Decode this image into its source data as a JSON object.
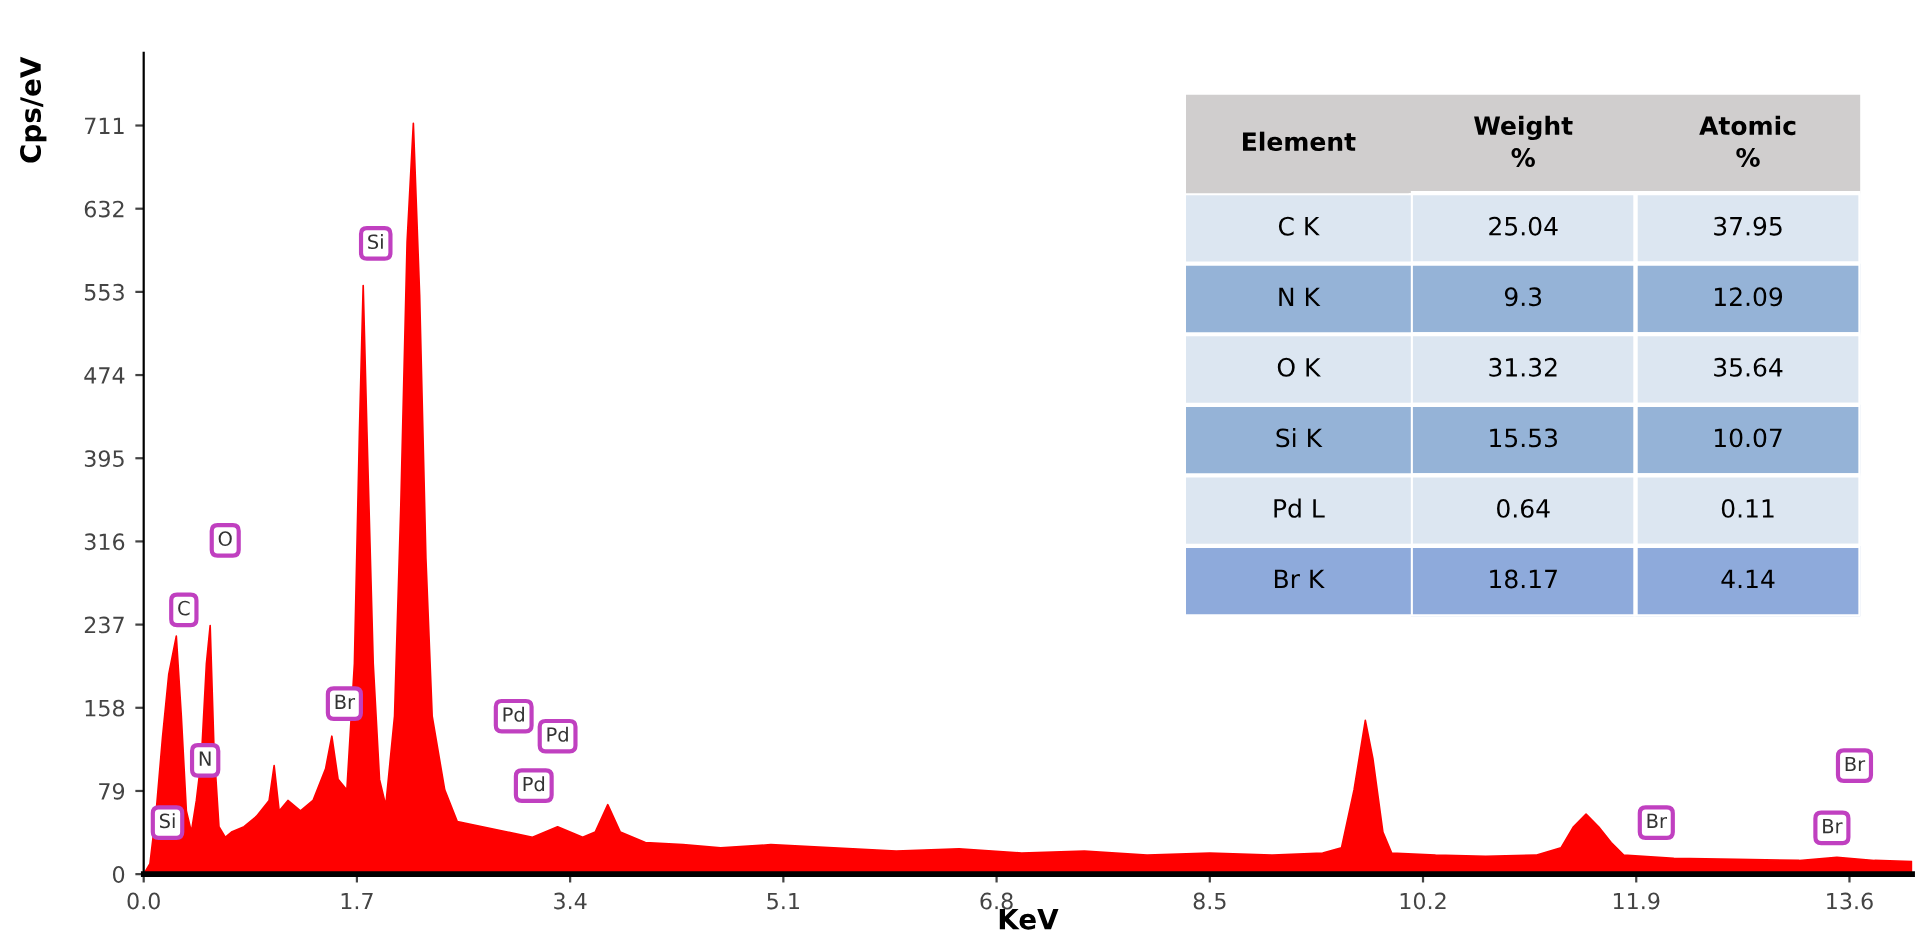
{
  "chart_data": [
    {
      "type": "area",
      "xlabel": "KeV",
      "ylabel": "Cps/eV",
      "xlim": [
        0,
        14.1
      ],
      "ylim": [
        0,
        780
      ],
      "xticks": [
        {
          "value": 0,
          "label": "0.0"
        },
        1.7,
        3.4,
        5.1,
        6.8,
        8.5,
        10.2,
        11.9,
        13.6
      ],
      "yticks": [
        0,
        79,
        158,
        237,
        316,
        395,
        474,
        553,
        632,
        711
      ],
      "grid": false,
      "legend": false,
      "series": [
        {
          "color": "#ff0000",
          "x": [
            0.0,
            0.05,
            0.1,
            0.15,
            0.2,
            0.26,
            0.3,
            0.34,
            0.38,
            0.42,
            0.46,
            0.5,
            0.53,
            0.56,
            0.6,
            0.65,
            0.7,
            0.8,
            0.9,
            1.0,
            1.04,
            1.08,
            1.15,
            1.25,
            1.35,
            1.45,
            1.5,
            1.55,
            1.62,
            1.68,
            1.72,
            1.75,
            1.78,
            1.83,
            1.88,
            1.93,
            2.0,
            2.05,
            2.1,
            2.15,
            2.2,
            2.25,
            2.3,
            2.4,
            2.5,
            2.7,
            2.9,
            3.1,
            3.3,
            3.5,
            3.6,
            3.7,
            3.8,
            4.0,
            4.3,
            4.6,
            5.0,
            5.5,
            6.0,
            6.5,
            7.0,
            7.5,
            8.0,
            8.5,
            9.0,
            9.4,
            9.55,
            9.65,
            9.74,
            9.8,
            9.88,
            9.95,
            10.3,
            10.7,
            11.1,
            11.3,
            11.4,
            11.5,
            11.6,
            11.7,
            11.8,
            12.2,
            12.7,
            13.2,
            13.5,
            13.8,
            14.1
          ],
          "values": [
            0,
            10,
            60,
            130,
            190,
            226,
            150,
            60,
            40,
            70,
            110,
            200,
            236,
            120,
            45,
            35,
            40,
            45,
            55,
            70,
            103,
            60,
            70,
            60,
            70,
            100,
            131,
            90,
            80,
            200,
            420,
            559,
            420,
            200,
            90,
            65,
            150,
            350,
            600,
            713,
            550,
            300,
            150,
            80,
            50,
            45,
            40,
            35,
            45,
            35,
            40,
            66,
            40,
            30,
            28,
            25,
            28,
            25,
            22,
            24,
            20,
            22,
            18,
            20,
            18,
            20,
            25,
            80,
            146,
            110,
            40,
            20,
            18,
            17,
            18,
            25,
            45,
            57,
            45,
            30,
            18,
            15,
            14,
            13,
            16,
            13,
            12
          ]
        }
      ],
      "annotations": [
        {
          "text": "Si",
          "x": 1.85,
          "y": 599
        },
        {
          "text": "O",
          "x": 0.65,
          "y": 317
        },
        {
          "text": "C",
          "x": 0.32,
          "y": 251
        },
        {
          "text": "N",
          "x": 0.49,
          "y": 108
        },
        {
          "text": "Si",
          "x": 0.19,
          "y": 49
        },
        {
          "text": "Br",
          "x": 1.6,
          "y": 162
        },
        {
          "text": "Pd",
          "x": 2.95,
          "y": 150
        },
        {
          "text": "Pd",
          "x": 3.3,
          "y": 131
        },
        {
          "text": "Pd",
          "x": 3.11,
          "y": 84
        },
        {
          "text": "Br",
          "x": 12.06,
          "y": 49
        },
        {
          "text": "Br",
          "x": 13.46,
          "y": 44
        },
        {
          "text": "Br",
          "x": 13.64,
          "y": 103
        }
      ]
    },
    {
      "type": "heatmap",
      "ylabel": "Element",
      "data_labels": true,
      "categories": [
        "Weight\n%",
        "Atomic\n%"
      ],
      "y_categories": [
        "C K",
        "N K",
        "O K",
        "Si K",
        "Pd L",
        "Br K"
      ],
      "cells": [
        [
          25.04,
          37.95
        ],
        [
          9.3,
          12.09
        ],
        [
          31.32,
          35.64
        ],
        [
          15.53,
          10.07
        ],
        [
          0.64,
          0.11
        ],
        [
          18.17,
          4.14
        ]
      ],
      "colors": [
        "#dce6f1",
        "#95b3d7",
        "#dce6f1",
        "#95b3d7",
        "#dce6f1",
        "#8eaadb"
      ]
    }
  ]
}
